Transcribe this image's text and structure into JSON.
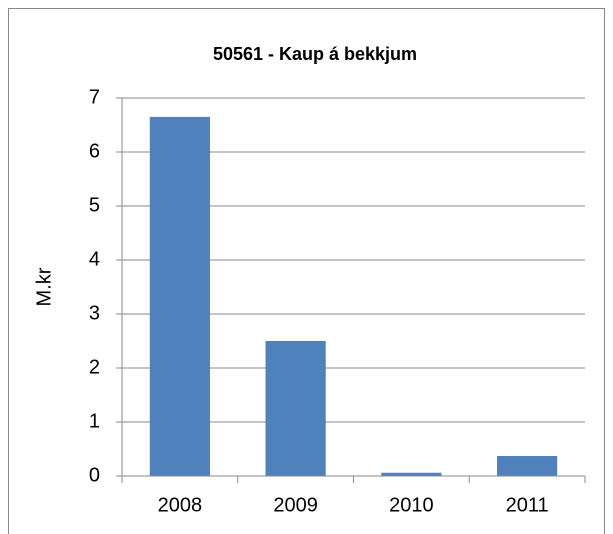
{
  "chart_data": {
    "type": "bar",
    "title": "50561 - Kaup á bekkjum",
    "y_label": "M.kr",
    "categories": [
      "2008",
      "2009",
      "2010",
      "2011"
    ],
    "values": [
      6.65,
      2.5,
      0.06,
      0.37
    ],
    "color": "#4f81bd",
    "ylim": [
      0,
      7
    ],
    "yticks": [
      0,
      1,
      2,
      3,
      4,
      5,
      6,
      7
    ],
    "grid": true
  }
}
